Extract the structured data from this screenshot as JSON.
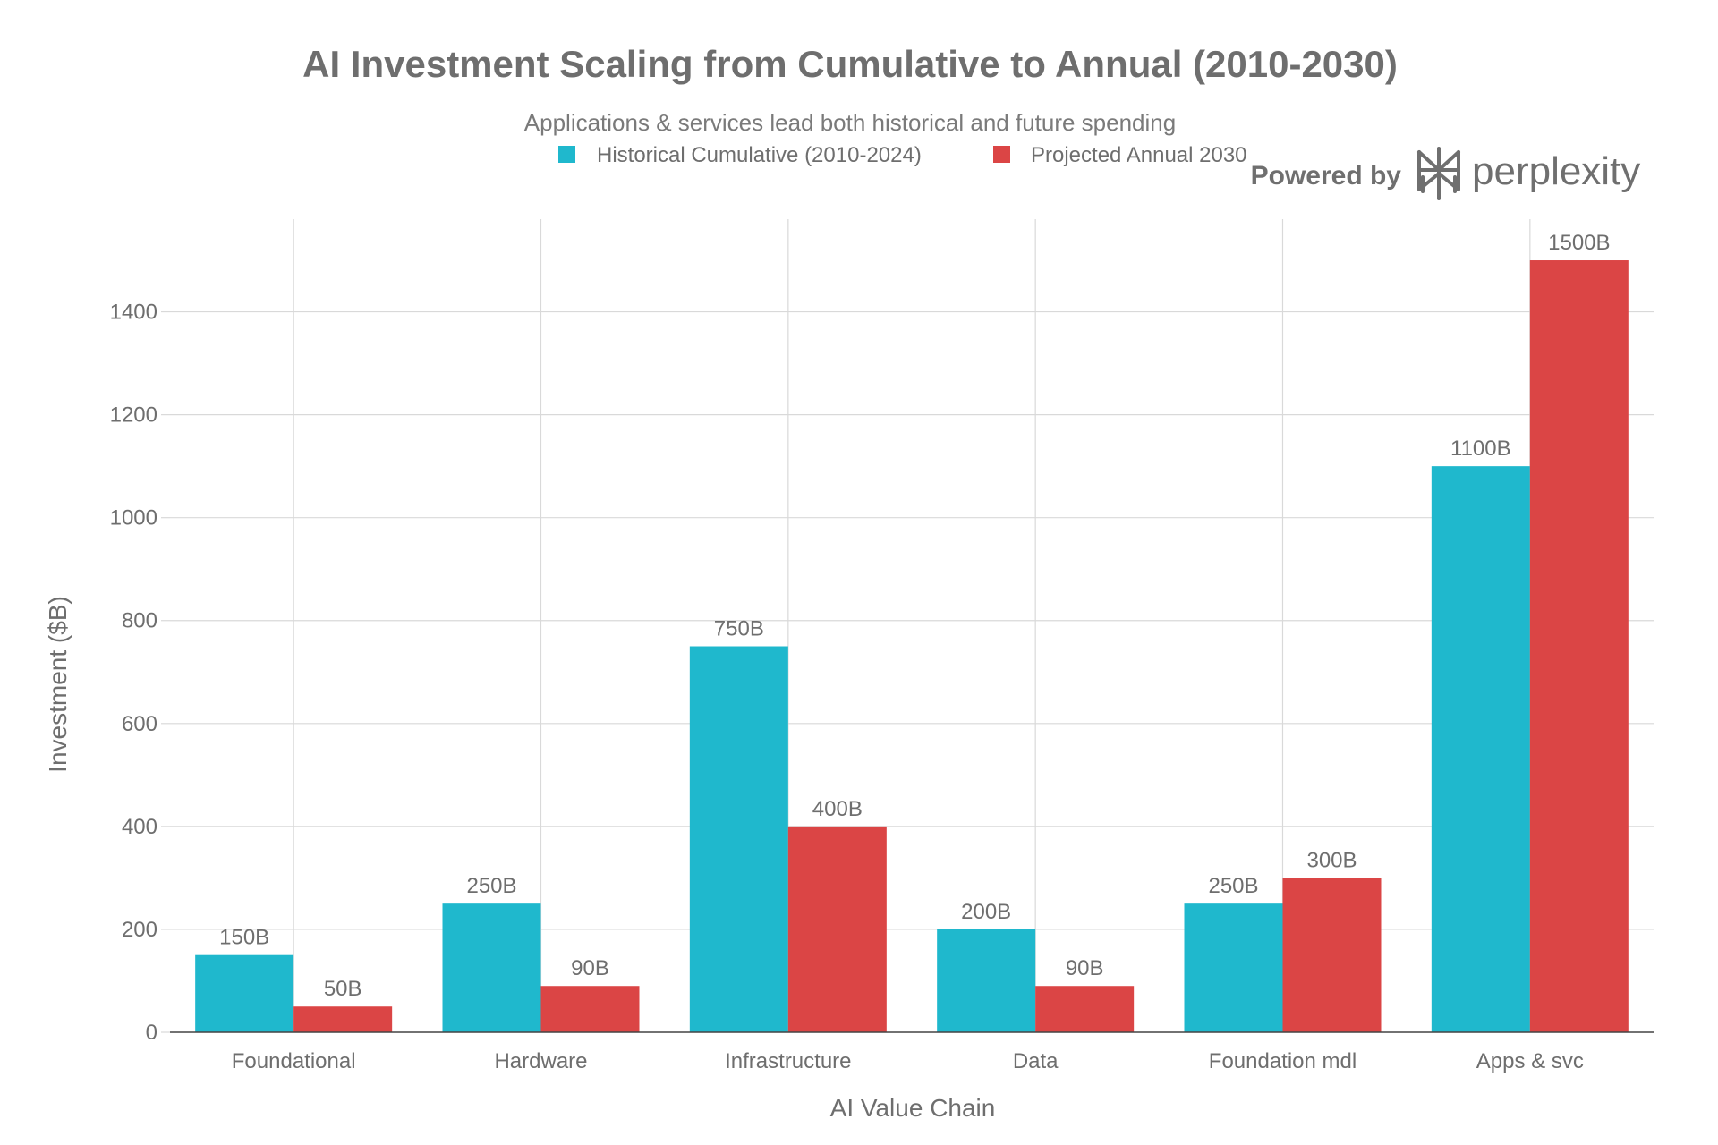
{
  "chart_data": {
    "type": "bar",
    "title": "AI Investment Scaling from Cumulative to Annual (2010-2030)",
    "subtitle": "Applications & services lead both historical and future spending",
    "xlabel": "AI Value Chain",
    "ylabel": "Investment ($B)",
    "categories": [
      "Foundational",
      "Hardware",
      "Infrastructure",
      "Data",
      "Foundation mdl",
      "Apps & svc"
    ],
    "series": [
      {
        "name": "Historical Cumulative (2010-2024)",
        "color": "#1FB8CD",
        "values": [
          150,
          250,
          750,
          200,
          250,
          1100
        ],
        "labels": [
          "150B",
          "250B",
          "750B",
          "200B",
          "250B",
          "1100B"
        ]
      },
      {
        "name": "Projected Annual 2030",
        "color": "#DB4545",
        "values": [
          50,
          90,
          400,
          90,
          300,
          1500
        ],
        "labels": [
          "50B",
          "90B",
          "400B",
          "90B",
          "300B",
          "1500B"
        ]
      }
    ],
    "ylim": [
      0,
      1580
    ],
    "yticks": [
      0,
      200,
      400,
      600,
      800,
      1000,
      1200,
      1400
    ],
    "grid": true,
    "legend_position": "top-center"
  },
  "branding": {
    "prefix": "Powered by",
    "name": "perplexity",
    "logo_icon": "perplexity-logo-icon"
  },
  "colors": {
    "text": "#6e6e6e",
    "grid": "#d9d9d9",
    "axis": "#444444"
  }
}
